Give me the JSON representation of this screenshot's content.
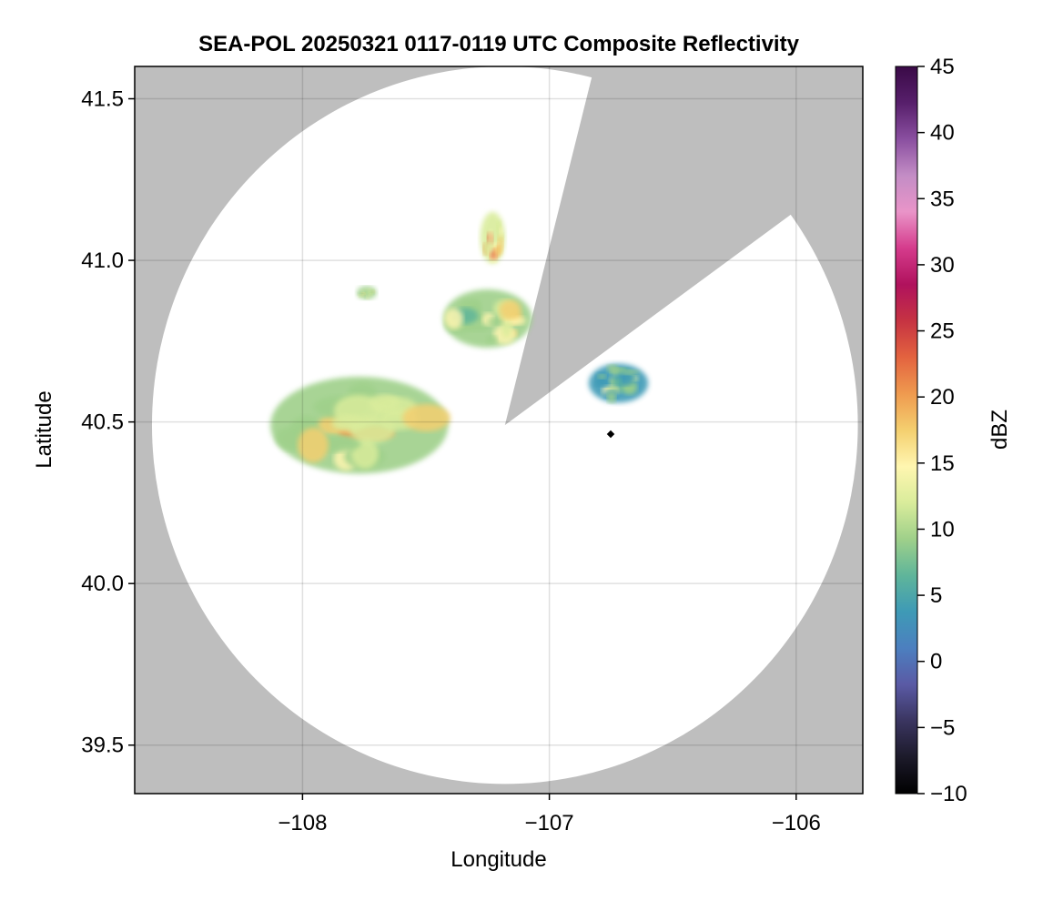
{
  "chart_data": {
    "type": "heatmap",
    "title": "SEA-POL 20250321 0117-0119 UTC Composite Reflectivity",
    "xlabel": "Longitude",
    "ylabel": "Latitude",
    "xlim": [
      -108.68,
      -105.73
    ],
    "ylim": [
      39.35,
      41.6
    ],
    "xticks": [
      -108,
      -107,
      -106
    ],
    "xtick_labels": [
      "−108",
      "−107",
      "−106"
    ],
    "yticks": [
      39.5,
      40.0,
      40.5,
      41.0,
      41.5
    ],
    "ytick_labels": [
      "39.5",
      "40.0",
      "40.5",
      "41.0",
      "41.5"
    ],
    "grid": true,
    "background_color": "#bebebe",
    "coverage_color": "#ffffff",
    "radar_center": {
      "lon": -107.18,
      "lat": 40.49
    },
    "radar_range_deg": {
      "lon": 1.43,
      "lat": 1.11
    },
    "blocked_sector": {
      "lon_points": [
        -106.84,
        -106.06
      ],
      "lat_points": [
        41.53,
        41.12
      ]
    },
    "colorbar": {
      "label": "dBZ",
      "min": -10,
      "max": 45,
      "ticks": [
        -10,
        -5,
        0,
        5,
        10,
        15,
        20,
        25,
        30,
        35,
        40,
        45
      ],
      "tick_labels": [
        "−10",
        "−5",
        "0",
        "5",
        "10",
        "15",
        "20",
        "25",
        "30",
        "35",
        "40",
        "45"
      ],
      "colors": [
        "#000000",
        "#1c1a2a",
        "#3a3560",
        "#5a5aa5",
        "#4c7fbf",
        "#3e9ab6",
        "#5fb59a",
        "#9fd08a",
        "#d9ec9b",
        "#fff6b0",
        "#f4cf6f",
        "#ef9a4f",
        "#e3633f",
        "#c63342",
        "#b0125d",
        "#d53b8c",
        "#e994c8",
        "#c38dc5",
        "#8a4fa0",
        "#571f6b",
        "#3a0a47"
      ]
    },
    "echoes": [
      {
        "name": "main cluster",
        "lon": -107.77,
        "lat": 40.49,
        "rx": 0.36,
        "ry": 0.15,
        "dbz": 14
      },
      {
        "name": "northeast cell",
        "lon": -107.25,
        "lat": 40.82,
        "rx": 0.18,
        "ry": 0.09,
        "dbz": 12
      },
      {
        "name": "northern band",
        "lon": -107.23,
        "lat": 41.07,
        "rx": 0.05,
        "ry": 0.08,
        "dbz": 17
      },
      {
        "name": "eastern cell",
        "lon": -106.72,
        "lat": 40.62,
        "rx": 0.12,
        "ry": 0.06,
        "dbz": 9
      },
      {
        "name": "small western cell",
        "lon": -107.74,
        "lat": 40.9,
        "rx": 0.04,
        "ry": 0.02,
        "dbz": 13
      }
    ]
  }
}
